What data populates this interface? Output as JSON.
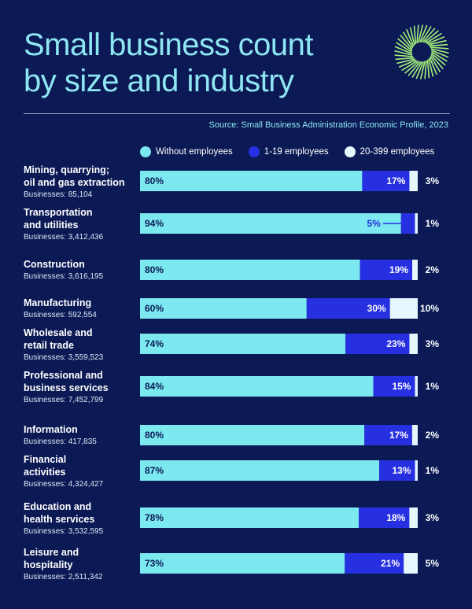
{
  "colors": {
    "background": "#0b1a55",
    "accent": "#8fe6f3",
    "without": "#7ce8f0",
    "small": "#2730e0",
    "mid": "#e6f7fd",
    "logo": "#a6f07a"
  },
  "title_line1": "Small business count",
  "title_line2": "by size and industry",
  "source": "Source: Small Business Administration Economic Profile, 2023",
  "legend": [
    {
      "label": "Without employees",
      "color": "#7ce8f0"
    },
    {
      "label": "1-19 employees",
      "color": "#2730e0"
    },
    {
      "label": "20-399 employees",
      "color": "#e6f7fd"
    }
  ],
  "chart_data": {
    "type": "bar",
    "stacked": true,
    "orientation": "horizontal",
    "title": "Small business count by size and industry",
    "series_names": [
      "Without employees",
      "1-19 employees",
      "20-399 employees"
    ],
    "series_labels": [
      [
        "80%",
        "94%",
        "80%",
        "60%",
        "74%",
        "84%",
        "80%",
        "87%",
        "78%",
        "73%"
      ],
      [
        "17%",
        "5%",
        "19%",
        "30%",
        "23%",
        "15%",
        "17%",
        "13%",
        "18%",
        "21%"
      ],
      [
        "3%",
        "1%",
        "2%",
        "10%",
        "3%",
        "1%",
        "2%",
        "1%",
        "3%",
        "5%"
      ]
    ],
    "legend_position": "top",
    "rows": [
      {
        "name": [
          "Mining, quarrying;",
          "oil and gas extraction"
        ],
        "count": "Businesses: 85,104",
        "values": [
          80,
          17,
          3
        ]
      },
      {
        "name": [
          "Transportation",
          "and utilities"
        ],
        "count": "Businesses: 3,412,436",
        "values": [
          94,
          5,
          1
        ]
      },
      {
        "name": [
          "Construction"
        ],
        "count": "Businesses: 3,616,195",
        "values": [
          80,
          19,
          2
        ]
      },
      {
        "name": [
          "Manufacturing"
        ],
        "count": "Businesses: 592,554",
        "values": [
          60,
          30,
          10
        ]
      },
      {
        "name": [
          "Wholesale and",
          "retail trade"
        ],
        "count": "Businesses: 3,559,523",
        "values": [
          74,
          23,
          3
        ]
      },
      {
        "name": [
          "Professional and",
          "business services"
        ],
        "count": "Businesses: 7,452,799",
        "values": [
          84,
          15,
          1
        ]
      },
      {
        "name": [
          "Information"
        ],
        "count": "Businesses: 417,835",
        "values": [
          80,
          17,
          2
        ]
      },
      {
        "name": [
          "Financial",
          "activities"
        ],
        "count": "Businesses: 4,324,427",
        "values": [
          87,
          13,
          1
        ]
      },
      {
        "name": [
          "Education and",
          "health services"
        ],
        "count": "Businesses: 3,532,595",
        "values": [
          78,
          18,
          3
        ]
      },
      {
        "name": [
          "Leisure and",
          "hospitality"
        ],
        "count": "Businesses: 2,511,342",
        "values": [
          73,
          21,
          5
        ]
      }
    ]
  }
}
